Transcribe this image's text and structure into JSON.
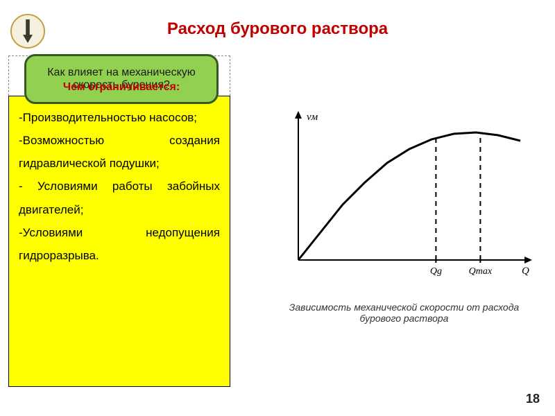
{
  "title": "Расход бурового раствора",
  "greenBox": "Как влияет на механическую скорость бурения?",
  "subtitle": "Чем ограничивается:",
  "yellowBox": {
    "items": [
      "-Производительностью насосов;",
      "-Возможностью создания гидравлической подушки;",
      "- Условиями работы забойных двигателей;",
      "-Условиями недопущения гидроразрыва."
    ]
  },
  "chart": {
    "type": "line",
    "background": "#ffffff",
    "axisColor": "#000000",
    "curveColor": "#000000",
    "lineWidth": 3,
    "yLabel": "vм",
    "xLabel": "Q",
    "xTicks": [
      {
        "pos": 0.62,
        "label": "Qg"
      },
      {
        "pos": 0.82,
        "label": "Qmax"
      }
    ],
    "curve": [
      {
        "x": 0.0,
        "y": 0.0
      },
      {
        "x": 0.1,
        "y": 0.2
      },
      {
        "x": 0.2,
        "y": 0.4
      },
      {
        "x": 0.3,
        "y": 0.56
      },
      {
        "x": 0.4,
        "y": 0.7
      },
      {
        "x": 0.5,
        "y": 0.8
      },
      {
        "x": 0.6,
        "y": 0.87
      },
      {
        "x": 0.7,
        "y": 0.91
      },
      {
        "x": 0.8,
        "y": 0.92
      },
      {
        "x": 0.9,
        "y": 0.9
      },
      {
        "x": 1.0,
        "y": 0.86
      }
    ],
    "dashPattern": "7,6",
    "fontSize": 15,
    "fontStyle": "italic"
  },
  "caption": "Зависимость механической скорости от расхода бурового раствора",
  "pageNumber": "18"
}
